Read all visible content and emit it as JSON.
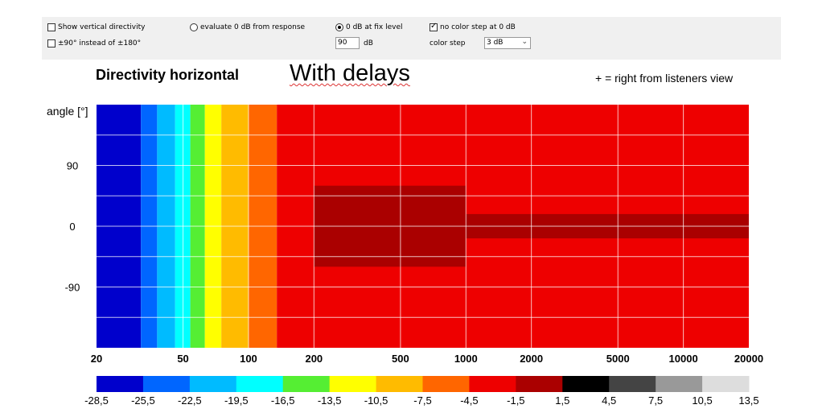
{
  "controls": {
    "show_vertical_directivity": {
      "label": "Show vertical directivity",
      "checked": false
    },
    "plus_minus_90": {
      "label": "±90° instead of ±180°",
      "checked": false
    },
    "evaluate_0db": {
      "label": "evaluate 0 dB from response",
      "selected": false
    },
    "fix_level": {
      "label": "0 dB at fix level",
      "selected": true
    },
    "level_value": "90",
    "level_unit": "dB",
    "no_color_step": {
      "label": "no color step at 0 dB",
      "checked": true
    },
    "color_step_label": "color step",
    "color_step_value": "3 dB"
  },
  "heading": {
    "title": "Directivity horizontal",
    "subtitle": "With delays",
    "note": "+ = right from listeners view"
  },
  "chart_data": {
    "type": "heatmap",
    "title": "Directivity horizontal",
    "x_scale": "log",
    "xlim": [
      20,
      20000
    ],
    "ylim": [
      -180,
      180
    ],
    "ylabel": "angle [°]",
    "x_ticks": [
      20,
      50,
      100,
      200,
      500,
      1000,
      2000,
      5000,
      10000,
      20000
    ],
    "y_ticks": [
      90,
      0,
      -90
    ],
    "grid": true,
    "colorbar": {
      "levels": [
        -28.5,
        -25.5,
        -22.5,
        -19.5,
        -16.5,
        -13.5,
        -10.5,
        -7.5,
        -4.5,
        -1.5,
        1.5,
        4.5,
        7.5,
        10.5,
        13.5
      ],
      "tick_labels": [
        "-28,5",
        "-25,5",
        "-22,5",
        "-19,5",
        "-16,5",
        "-13,5",
        "-10,5",
        "-7,5",
        "-4,5",
        "-1,5",
        "1,5",
        "4,5",
        "7,5",
        "10,5",
        "13,5"
      ],
      "colors": [
        "#0000cc",
        "#0066ff",
        "#00bbff",
        "#00ffff",
        "#55ee33",
        "#ffff00",
        "#ffbb00",
        "#ff6600",
        "#ee0000",
        "#aa0000",
        "#000000",
        "#444444",
        "#999999",
        "#dddddd"
      ]
    },
    "regions": [
      {
        "x": [
          20,
          32
        ],
        "level_db": -28
      },
      {
        "x": [
          32,
          38
        ],
        "level_db": -25
      },
      {
        "x": [
          38,
          46
        ],
        "level_db": -21
      },
      {
        "x": [
          46,
          54
        ],
        "level_db": -18
      },
      {
        "x": [
          54,
          63
        ],
        "level_db": -15
      },
      {
        "x": [
          63,
          75
        ],
        "level_db": -12
      },
      {
        "x": [
          75,
          100
        ],
        "level_db": -9
      },
      {
        "x": [
          100,
          135
        ],
        "level_db": -6
      },
      {
        "x": [
          135,
          20000
        ],
        "level_db": -3
      },
      {
        "x": [
          200,
          1000
        ],
        "y": [
          -60,
          60
        ],
        "level_db": -1
      },
      {
        "x": [
          1000,
          20000
        ],
        "y": [
          -18,
          18
        ],
        "level_db": -1
      }
    ]
  }
}
